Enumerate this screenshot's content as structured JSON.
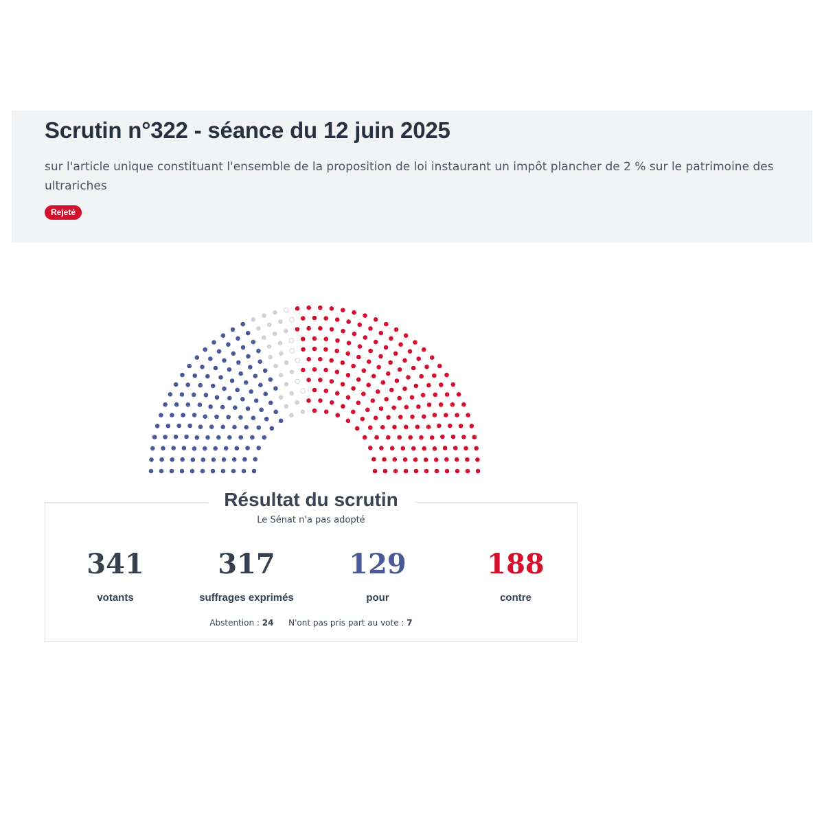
{
  "header": {
    "title": "Scrutin n°322 - séance du 12 juin 2025",
    "subtitle": "sur l'article unique constituant l'ensemble de la proposition de loi instaurant un impôt plancher de 2 % sur le patrimoine des ultrariches",
    "status_badge": "Rejeté"
  },
  "colors": {
    "pour": "#4a5a99",
    "contre": "#d4102c",
    "abstention": "#cfd3d9",
    "non_votant": "#ffffff",
    "badge": "#d4102c"
  },
  "result": {
    "title": "Résultat du scrutin",
    "subtitle": "Le Sénat n'a pas adopté",
    "stats": [
      {
        "value": "341",
        "label": "votants",
        "color": "#36404f"
      },
      {
        "value": "317",
        "label": "suffrages exprimés",
        "color": "#36404f"
      },
      {
        "value": "129",
        "label": "pour",
        "color": "#4a5a99"
      },
      {
        "value": "188",
        "label": "contre",
        "color": "#d4102c"
      }
    ],
    "abstention_label": "Abstention :",
    "abstention_value": "24",
    "non_votants_label": "N'ont pas pris part au vote :",
    "non_votants_value": "7"
  },
  "chart_data": {
    "type": "hemicycle",
    "seats_total": 348,
    "groups": [
      {
        "key": "pour",
        "count": 129
      },
      {
        "key": "abstention",
        "count": 24
      },
      {
        "key": "non_votant",
        "count": 7
      },
      {
        "key": "contre",
        "count": 188
      }
    ],
    "rows": 11,
    "sectors": 5
  }
}
